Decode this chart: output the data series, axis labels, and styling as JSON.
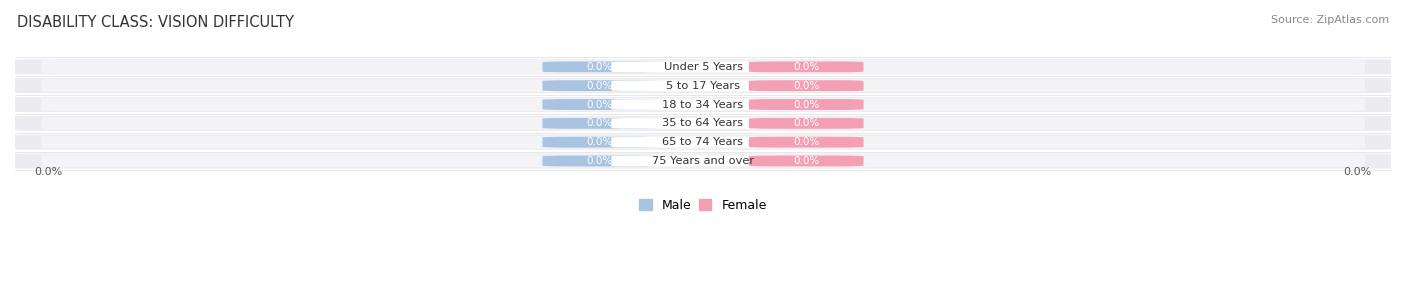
{
  "title": "DISABILITY CLASS: VISION DIFFICULTY",
  "source": "Source: ZipAtlas.com",
  "categories": [
    "Under 5 Years",
    "5 to 17 Years",
    "18 to 34 Years",
    "35 to 64 Years",
    "65 to 74 Years",
    "75 Years and over"
  ],
  "male_values": [
    0.0,
    0.0,
    0.0,
    0.0,
    0.0,
    0.0
  ],
  "female_values": [
    0.0,
    0.0,
    0.0,
    0.0,
    0.0,
    0.0
  ],
  "male_color": "#a8c4e0",
  "female_color": "#f4a0b4",
  "male_label": "Male",
  "female_label": "Female",
  "row_color": "#ebebf0",
  "row_bg_white": "#f7f7fa",
  "label_x_left": "0.0%",
  "label_x_right": "0.0%",
  "title_fontsize": 10.5,
  "source_fontsize": 8,
  "background_color": "#ffffff"
}
